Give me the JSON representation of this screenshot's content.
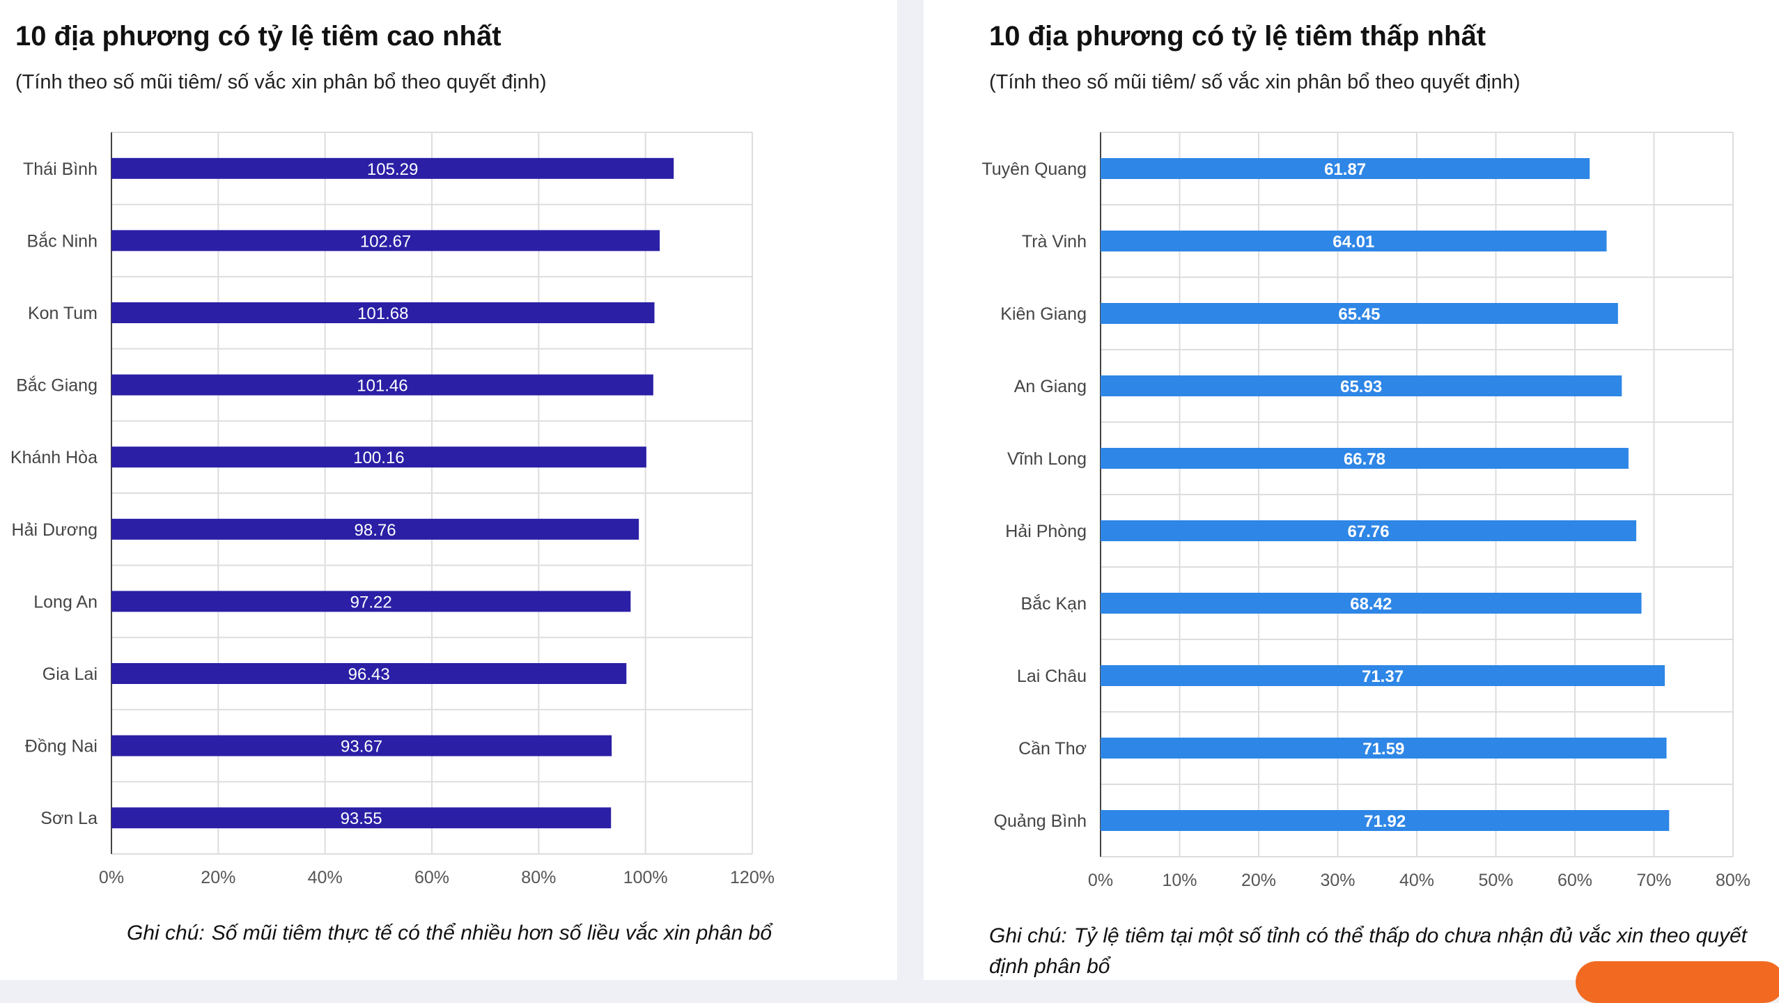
{
  "charts": {
    "highest": {
      "title": "10 địa phương có tỷ lệ tiêm cao nhất",
      "subtitle": "(Tính theo số mũi tiêm/ số vắc xin phân bổ theo quyết định)",
      "note_label": "Ghi chú:",
      "note_text": "Số mũi tiêm thực tế có thể nhiều hơn số liều vắc xin phân bổ"
    },
    "lowest": {
      "title": "10 địa phương có tỷ lệ tiêm thấp nhất",
      "subtitle": "(Tính theo số mũi tiêm/ số vắc xin phân bổ theo quyết định)",
      "note_label": "Ghi chú:",
      "note_text": "Tỷ lệ tiêm tại một số tỉnh có thể thấp do chưa nhận đủ vắc xin theo quyết định phân bổ"
    }
  },
  "chart_data": [
    {
      "type": "bar",
      "orientation": "horizontal",
      "title": "10 địa phương có tỷ lệ tiêm cao nhất",
      "subtitle": "(Tính theo số mũi tiêm/ số vắc xin phân bổ theo quyết định)",
      "categories": [
        "Thái Bình",
        "Bắc Ninh",
        "Kon Tum",
        "Bắc Giang",
        "Khánh Hòa",
        "Hải Dương",
        "Long An",
        "Gia Lai",
        "Đồng Nai",
        "Sơn La"
      ],
      "values": [
        105.29,
        102.67,
        101.68,
        101.46,
        100.16,
        98.76,
        97.22,
        96.43,
        93.67,
        93.55
      ],
      "value_labels": [
        "105.29",
        "102.67",
        "101.68",
        "101.46",
        "100.16",
        "98.76",
        "97.22",
        "96.43",
        "93.67",
        "93.55"
      ],
      "xlim": [
        0,
        120
      ],
      "xticks": [
        "0%",
        "20%",
        "40%",
        "60%",
        "80%",
        "100%",
        "120%"
      ],
      "xlabel": "",
      "ylabel": "",
      "grid": true,
      "color": "#2a1fa5",
      "label_bold": false
    },
    {
      "type": "bar",
      "orientation": "horizontal",
      "title": "10 địa phương có tỷ lệ tiêm thấp nhất",
      "subtitle": "(Tính theo số mũi tiêm/ số vắc xin phân bổ theo quyết định)",
      "categories": [
        "Tuyên Quang",
        "Trà Vinh",
        "Kiên Giang",
        "An Giang",
        "Vĩnh Long",
        "Hải Phòng",
        "Bắc Kạn",
        "Lai Châu",
        "Cần Thơ",
        "Quảng Bình"
      ],
      "values": [
        61.87,
        64.01,
        65.45,
        65.93,
        66.78,
        67.76,
        68.42,
        71.37,
        71.59,
        71.92
      ],
      "value_labels": [
        "61.87",
        "64.01",
        "65.45",
        "65.93",
        "66.78",
        "67.76",
        "68.42",
        "71.37",
        "71.59",
        "71.92"
      ],
      "xlim": [
        0,
        80
      ],
      "xticks": [
        "0%",
        "10%",
        "20%",
        "30%",
        "40%",
        "50%",
        "60%",
        "70%",
        "80%"
      ],
      "xlabel": "",
      "ylabel": "",
      "grid": true,
      "color": "#2e86e6",
      "label_bold": true
    }
  ]
}
